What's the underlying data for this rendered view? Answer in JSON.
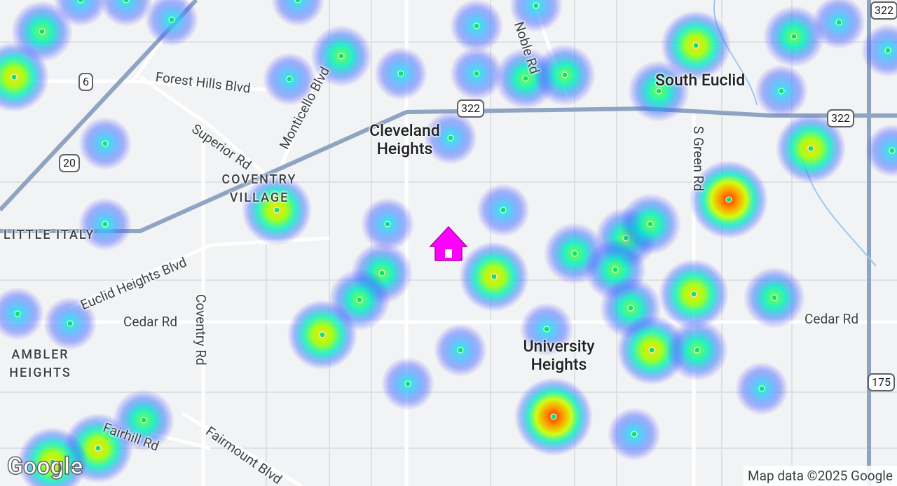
{
  "places": {
    "cleveland_heights": "Cleveland Heights",
    "south_euclid": "South Euclid",
    "coventry_village": "COVENTRY VILLAGE",
    "little_italy": "LITTLE ITALY",
    "ambler_heights": "AMBLER HEIGHTS",
    "university_heights": "University Heights"
  },
  "roads": {
    "forest_hills": "Forest Hills Blvd",
    "monticello": "Monticello Blvd",
    "noble": "Noble Rd",
    "superior": "Superior Rd",
    "coventry": "Coventry Rd",
    "euclid_heights": "Euclid Heights Blvd",
    "cedar_west": "Cedar Rd",
    "cedar_east": "Cedar Rd",
    "s_green": "S Green Rd",
    "fairhill": "Fairhill Rd",
    "fairmount": "Fairmount Blvd"
  },
  "shields": [
    "6",
    "20",
    "322",
    "322",
    "175"
  ],
  "logo": "Google",
  "attribution": "Map data ©2025 Google"
}
